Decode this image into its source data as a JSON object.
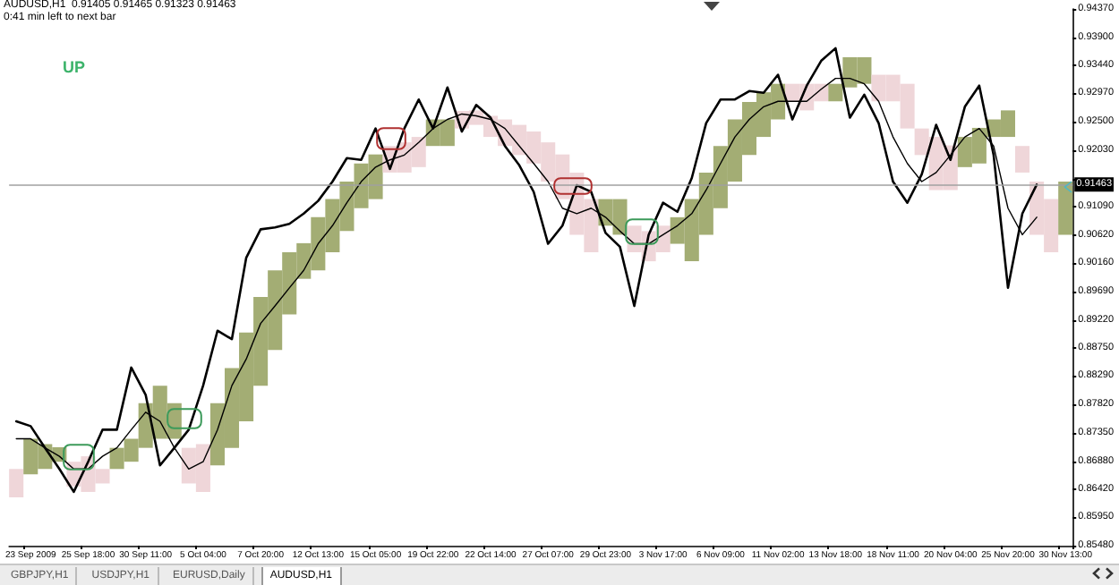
{
  "chart_data": {
    "type": "line",
    "title": "AUDUSD,H1  0.91405 0.91465 0.91323 0.91463",
    "subtitle": "0:41 min left to next bar",
    "annotations": [
      "UP",
      "GBPJPY,H1",
      "USDJPY,H1",
      "EURUSD,Daily",
      "AUDUSD,H1"
    ],
    "categories": [
      null,
      "23 Sep 2009",
      null,
      null,
      null,
      "25 Sep 18:00",
      null,
      null,
      null,
      "30 Sep 11:00",
      null,
      null,
      null,
      "5 Oct 04:00",
      null,
      null,
      null,
      "7 Oct 20:00",
      null,
      null,
      null,
      "12 Oct 13:00",
      null,
      null,
      null,
      "15 Oct 05:00",
      null,
      null,
      null,
      "19 Oct 22:00",
      null,
      null,
      null,
      "22 Oct 14:00",
      null,
      null,
      null,
      "27 Oct 07:00",
      null,
      null,
      null,
      "29 Oct 23:00",
      null,
      null,
      null,
      "3 Nov 17:00",
      null,
      null,
      null,
      "6 Nov 09:00",
      null,
      null,
      null,
      "11 Nov 02:00",
      null,
      null,
      null,
      "13 Nov 18:00",
      null,
      null,
      null,
      "18 Nov 11:00",
      null,
      null,
      null,
      "20 Nov 04:00",
      null,
      null,
      null,
      "25 Nov 20:00",
      null,
      null,
      null,
      "30 Nov 13:00"
    ],
    "series": [
      {
        "type": "bar",
        "base": [
          0.8628,
          0.8666,
          0.8675,
          0.8687,
          0.8646,
          0.8637,
          0.8651,
          0.8675,
          0.8687,
          0.871,
          0.8725,
          0.8725,
          0.8651,
          0.8637,
          0.8681,
          0.871,
          0.8754,
          0.8813,
          0.8872,
          0.8931,
          0.899,
          0.9004,
          0.9034,
          0.9069,
          0.9107,
          0.9122,
          0.9166,
          0.9166,
          0.9175,
          0.921,
          0.921,
          0.9239,
          0.9245,
          0.9225,
          0.921,
          0.9195,
          0.9181,
          0.9151,
          0.9122,
          0.9063,
          0.9034,
          0.9078,
          0.9063,
          0.9034,
          0.9019,
          0.9034,
          0.9048,
          0.9019,
          0.9063,
          0.9107,
          0.9151,
          0.9195,
          0.9225,
          0.9254,
          0.9284,
          0.9269,
          0.9284,
          0.9284,
          0.9307,
          0.9313,
          0.9284,
          0.9284,
          0.9239,
          0.9195,
          0.9137,
          0.9137,
          0.9175,
          0.9181,
          0.9225,
          0.9225,
          0.9166,
          0.9063,
          0.9034,
          0.9063
        ],
        "values": [
          0.0047,
          0.0059,
          0.0041,
          0.0024,
          0.0041,
          0.0059,
          0.0024,
          0.0035,
          0.0038,
          0.0074,
          0.0088,
          0.0059,
          0.0059,
          0.0079,
          0.0103,
          0.0132,
          0.0147,
          0.0147,
          0.0132,
          0.0103,
          0.0059,
          0.0088,
          0.0088,
          0.0082,
          0.0074,
          0.0074,
          0.0044,
          0.005,
          0.005,
          0.0044,
          0.0044,
          0.0029,
          0.0024,
          0.0035,
          0.0044,
          0.005,
          0.0053,
          0.0065,
          0.0074,
          0.0103,
          0.0088,
          0.0044,
          0.0059,
          0.0044,
          0.005,
          0.0044,
          0.0044,
          0.0103,
          0.0103,
          0.0103,
          0.0103,
          0.0088,
          0.0074,
          0.0059,
          0.0029,
          0.0044,
          0.0029,
          0.0029,
          0.005,
          0.0044,
          0.0044,
          0.0044,
          0.0074,
          0.0044,
          0.0088,
          0.0074,
          0.005,
          0.0059,
          0.0029,
          0.0044,
          0.0044,
          0.0088,
          0.0088,
          0.0088
        ],
        "colors": [
          "#efd6d9",
          "#a3ad74",
          "#a3ad74",
          "#a3ad74",
          "#efd6d9",
          "#efd6d9",
          "#efd6d9",
          "#a3ad74",
          "#a3ad74",
          "#a3ad74",
          "#a3ad74",
          "#a3ad74",
          "#efd6d9",
          "#efd6d9",
          "#a3ad74",
          "#a3ad74",
          "#a3ad74",
          "#a3ad74",
          "#a3ad74",
          "#a3ad74",
          "#a3ad74",
          "#a3ad74",
          "#a3ad74",
          "#a3ad74",
          "#a3ad74",
          "#a3ad74",
          "#efd6d9",
          "#efd6d9",
          "#efd6d9",
          "#a3ad74",
          "#a3ad74",
          "#efd6d9",
          "#efd6d9",
          "#efd6d9",
          "#efd6d9",
          "#efd6d9",
          "#efd6d9",
          "#efd6d9",
          "#efd6d9",
          "#efd6d9",
          "#efd6d9",
          "#a3ad74",
          "#a3ad74",
          "#efd6d9",
          "#efd6d9",
          "#efd6d9",
          "#a3ad74",
          "#a3ad74",
          "#a3ad74",
          "#a3ad74",
          "#a3ad74",
          "#a3ad74",
          "#a3ad74",
          "#a3ad74",
          "#efd6d9",
          "#efd6d9",
          "#efd6d9",
          "#a3ad74",
          "#a3ad74",
          "#a3ad74",
          "#efd6d9",
          "#efd6d9",
          "#efd6d9",
          "#efd6d9",
          "#efd6d9",
          "#efd6d9",
          "#a3ad74",
          "#a3ad74",
          "#a3ad74",
          "#a3ad74",
          "#efd6d9",
          "#efd6d9",
          "#efd6d9",
          "#a3ad74"
        ]
      },
      {
        "color": "#000000",
        "values": [
          0.8725,
          0.8725,
          0.871,
          0.8696,
          0.8675,
          0.8675,
          0.8696,
          0.871,
          0.874,
          0.8769,
          0.8754,
          0.871,
          0.8675,
          0.8687,
          0.874,
          0.8813,
          0.8857,
          0.8916,
          0.8945,
          0.8975,
          0.9004,
          0.9048,
          0.9078,
          0.9116,
          0.9151,
          0.9175,
          0.9187,
          0.9195,
          0.9216,
          0.9239,
          0.9254,
          0.9263,
          0.926,
          0.9254,
          0.9239,
          0.921,
          0.9181,
          0.9151,
          0.9107,
          0.9098,
          0.9107,
          0.9092,
          0.9069,
          0.9048,
          0.9048,
          0.9063,
          0.9078,
          0.9098,
          0.9137,
          0.9181,
          0.9225,
          0.9254,
          0.9275,
          0.9284,
          0.9284,
          0.9284,
          0.9304,
          0.9322,
          0.9322,
          0.9313,
          0.9284,
          0.9225,
          0.9181,
          0.9151,
          0.9166,
          0.9195,
          0.9225,
          0.9239,
          0.921,
          0.9107,
          0.9063,
          0.9092,
          null,
          null
        ]
      },
      {
        "color": "#000000",
        "values": [
          0.8754,
          0.8746,
          0.871,
          0.8675,
          0.8637,
          0.8687,
          0.874,
          0.874,
          0.8843,
          0.8798,
          0.8681,
          0.871,
          0.874,
          0.8813,
          0.8904,
          0.889,
          0.9025,
          0.9072,
          0.9075,
          0.9081,
          0.9098,
          0.9119,
          0.9151,
          0.919,
          0.9187,
          0.9239,
          0.9172,
          0.9239,
          0.9287,
          0.9239,
          0.9307,
          0.9234,
          0.9278,
          0.9257,
          0.921,
          0.9178,
          0.9134,
          0.9048,
          0.9078,
          0.9145,
          0.9134,
          0.9066,
          0.9043,
          0.8945,
          0.9063,
          0.9116,
          0.9101,
          0.9157,
          0.9248,
          0.9287,
          0.9287,
          0.9301,
          0.9298,
          0.9328,
          0.9254,
          0.931,
          0.9351,
          0.9372,
          0.9257,
          0.9295,
          0.9248,
          0.9151,
          0.9116,
          0.9163,
          0.9245,
          0.9187,
          0.9275,
          0.931,
          0.9195,
          0.8975,
          0.9098,
          0.9146,
          null,
          null
        ]
      }
    ],
    "ylim": [
      0.8548,
      0.9437
    ],
    "yticks": [
      {
        "value": 0.8548,
        "label": "0.85480"
      },
      {
        "value": 0.8595,
        "label": "0.85950"
      },
      {
        "value": 0.8642,
        "label": "0.86420"
      },
      {
        "value": 0.8688,
        "label": "0.86880"
      },
      {
        "value": 0.8735,
        "label": "0.87350"
      },
      {
        "value": 0.8782,
        "label": "0.87820"
      },
      {
        "value": 0.8829,
        "label": "0.88290"
      },
      {
        "value": 0.8875,
        "label": "0.88750"
      },
      {
        "value": 0.8922,
        "label": "0.89220"
      },
      {
        "value": 0.8969,
        "label": "0.89690"
      },
      {
        "value": 0.9016,
        "label": "0.90160"
      },
      {
        "value": 0.9062,
        "label": "0.90620"
      },
      {
        "value": 0.9109,
        "label": "0.91090"
      },
      {
        "value": 0.9156,
        "label": null
      },
      {
        "value": 0.9203,
        "label": "0.92030"
      },
      {
        "value": 0.925,
        "label": "0.92500"
      },
      {
        "value": 0.9297,
        "label": "0.92970"
      },
      {
        "value": 0.9344,
        "label": "0.93440"
      },
      {
        "value": 0.939,
        "label": "0.93900"
      },
      {
        "value": 0.9437,
        "label": "0.94370"
      }
    ],
    "ref_lines": [
      {
        "axis": "y",
        "value": 0.91463,
        "label": "0.91463",
        "color": "#a0a0a0"
      }
    ]
  }
}
